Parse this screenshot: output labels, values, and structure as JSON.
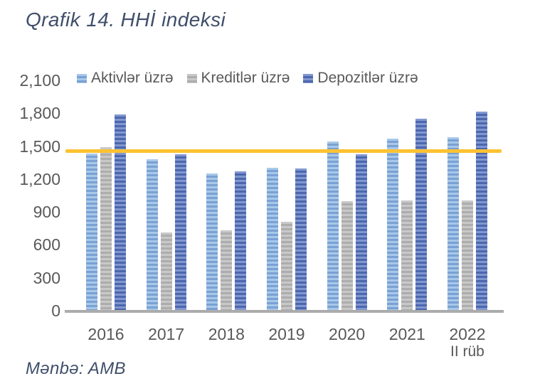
{
  "header": {
    "title": "Qrafik 14. HHİ indeksi"
  },
  "footer": {
    "source": "Mənbə: AMB"
  },
  "colors": {
    "title_text": "#3F4E6A",
    "axis_text": "#595959",
    "axis_line": "#ACACAC",
    "background": "#FFFFFF",
    "threshold": "#FDC233"
  },
  "chart_data": {
    "type": "bar",
    "title": "Qrafik 14. HHİ indeksi",
    "xlabel": "",
    "ylabel": "",
    "grid": false,
    "legend_position": "top",
    "categories": [
      "2016",
      "2017",
      "2018",
      "2019",
      "2020",
      "2021",
      "2022"
    ],
    "category_note": {
      "index": 6,
      "label": "II rüb"
    },
    "series": [
      {
        "name": "Aktivlər üzrə",
        "values": [
          1430,
          1380,
          1250,
          1300,
          1545,
          1570,
          1580
        ],
        "stripe_light": "#A8C8E9",
        "stripe_dark": "#7AA1D3"
      },
      {
        "name": "Kreditlər üzrə",
        "values": [
          1490,
          715,
          730,
          810,
          1000,
          1005,
          1005
        ],
        "stripe_light": "#C8C8C8",
        "stripe_dark": "#ADADAD"
      },
      {
        "name": "Depozitlər üzrə",
        "values": [
          1790,
          1425,
          1270,
          1295,
          1425,
          1750,
          1815
        ],
        "stripe_light": "#8297D0",
        "stripe_dark": "#4B67AE"
      }
    ],
    "threshold_line": {
      "value": 1450,
      "color": "#FDC233"
    },
    "ylim": [
      0,
      2100
    ],
    "yticks": [
      {
        "value": 0,
        "label": "0"
      },
      {
        "value": 300,
        "label": "300"
      },
      {
        "value": 600,
        "label": "600"
      },
      {
        "value": 900,
        "label": "900"
      },
      {
        "value": 1200,
        "label": "1,200"
      },
      {
        "value": 1500,
        "label": "1,500"
      },
      {
        "value": 1800,
        "label": "1,800"
      },
      {
        "value": 2100,
        "label": "2,100"
      }
    ]
  }
}
